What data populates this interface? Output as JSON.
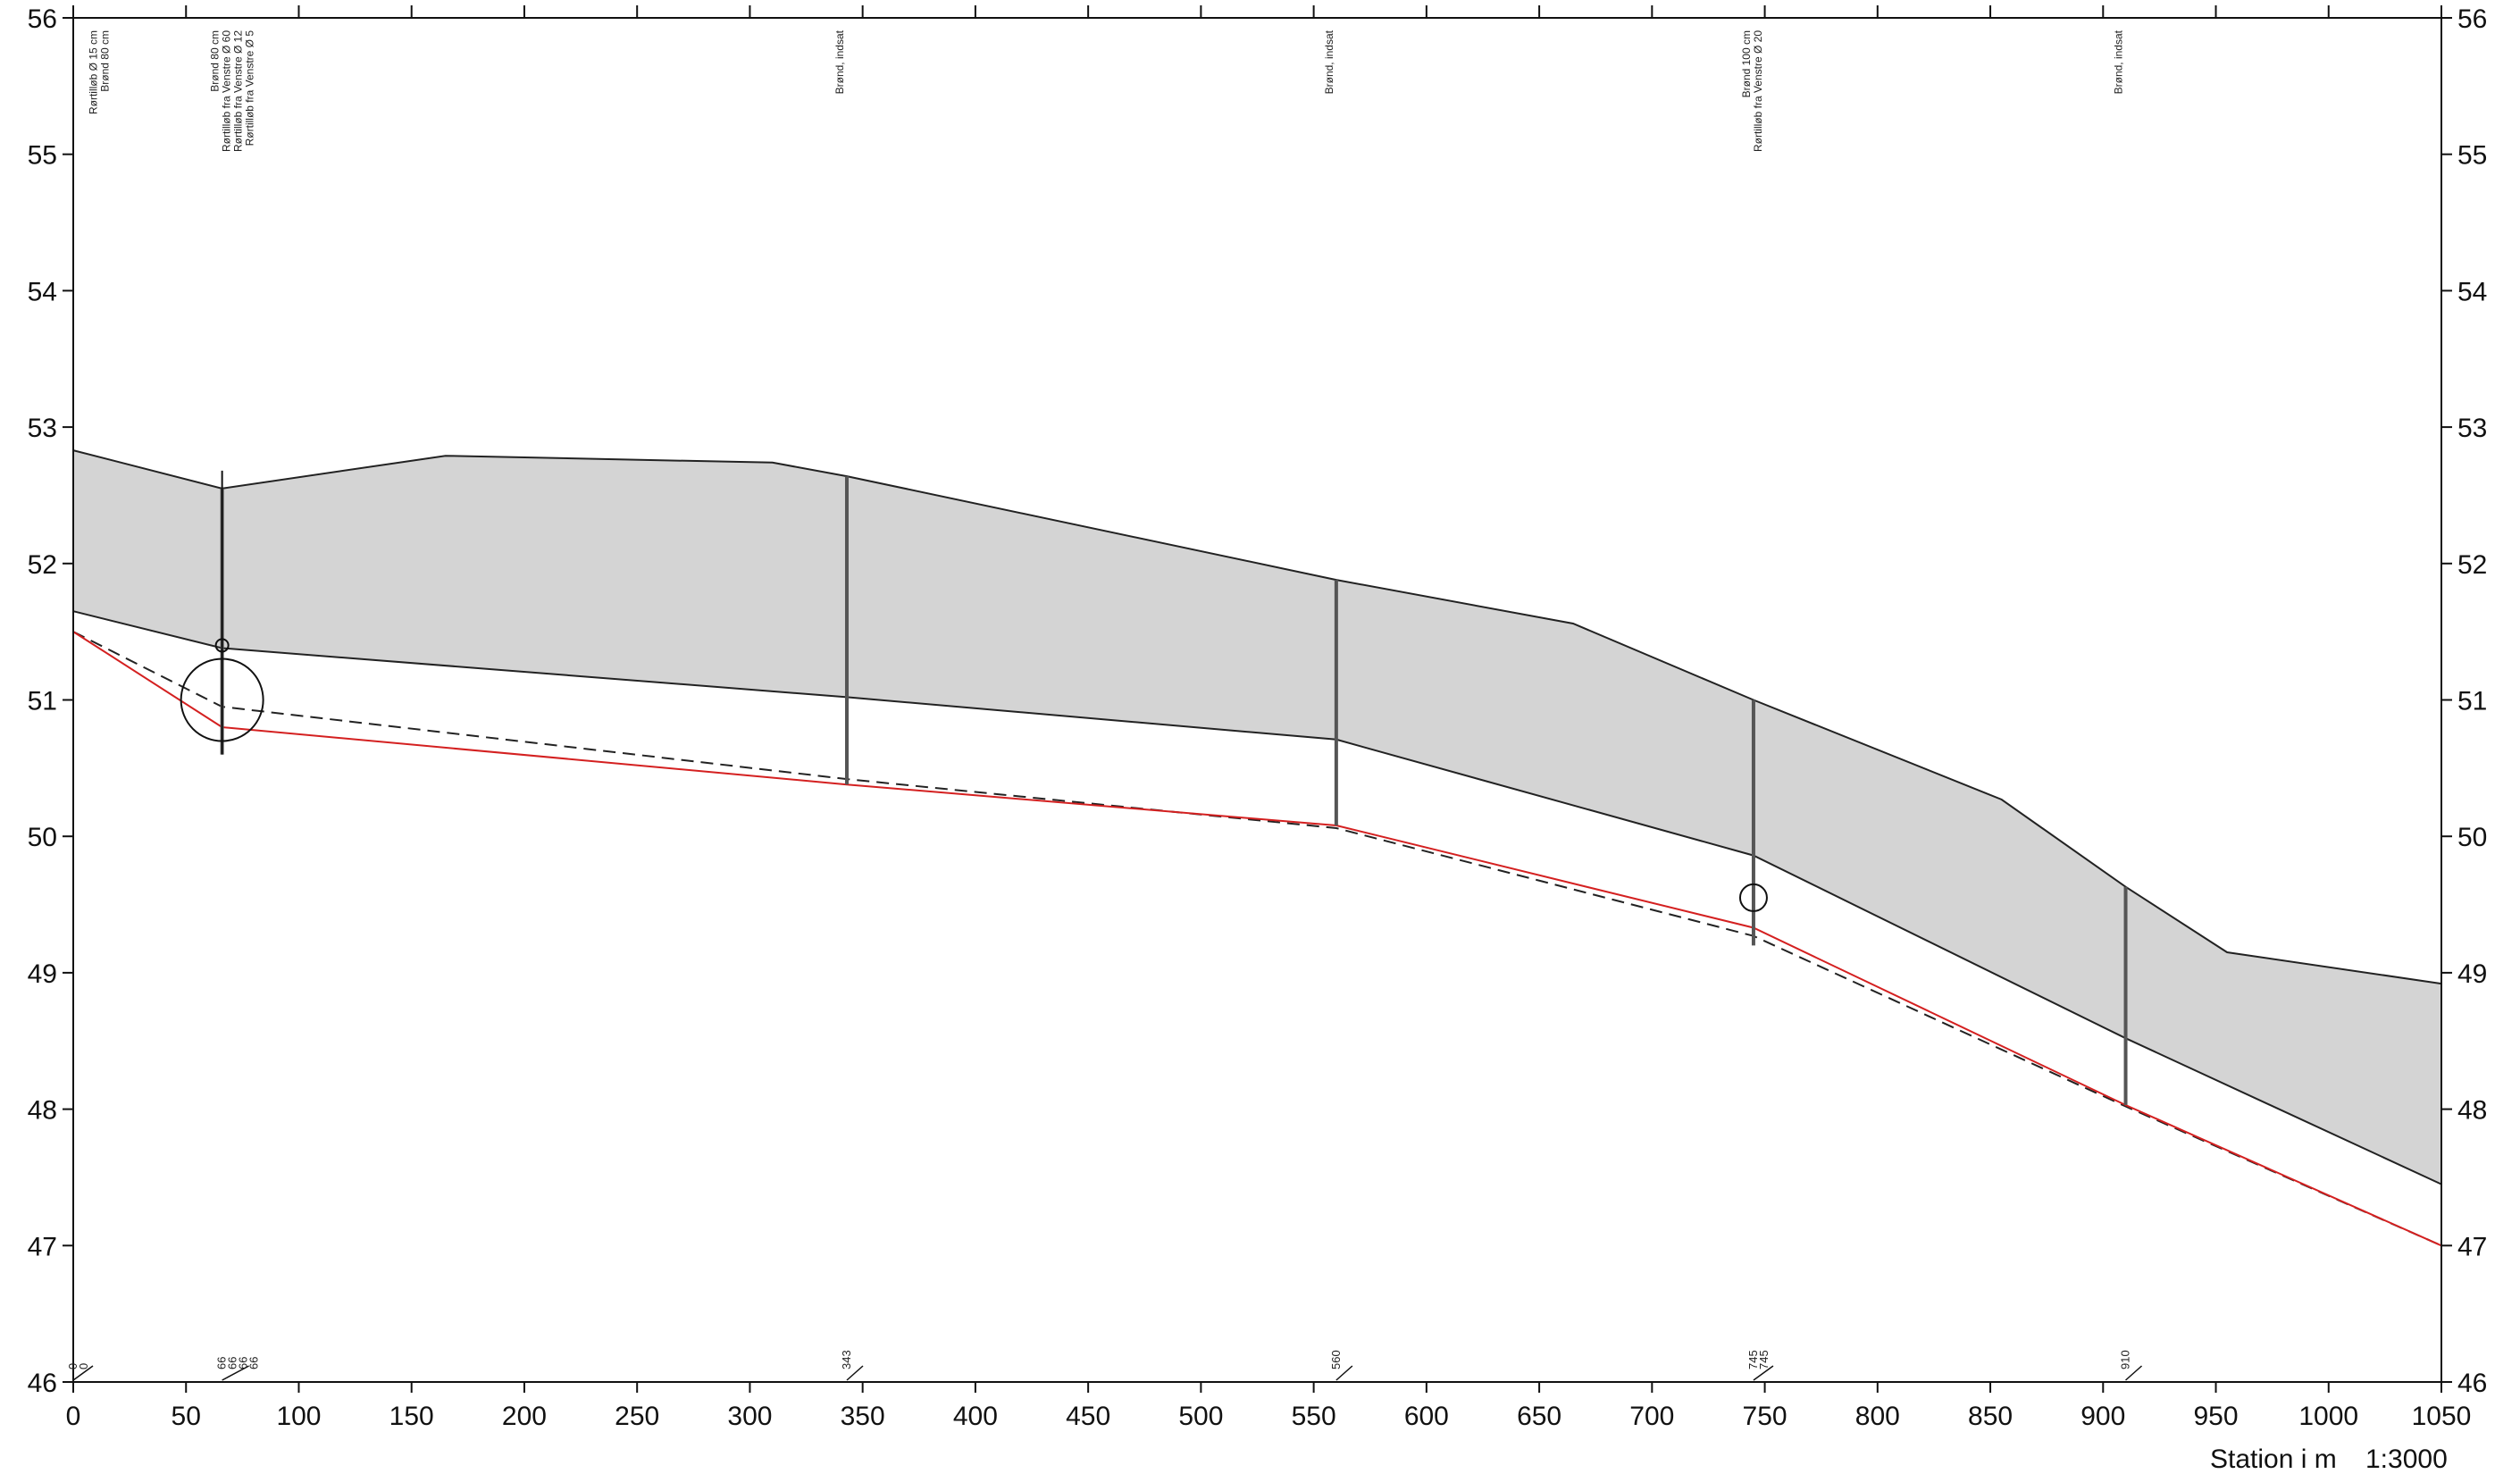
{
  "chart_data": {
    "type": "line",
    "xlabel": "Station i m",
    "scale": "1:3000",
    "xlim": [
      0,
      1050
    ],
    "ylim": [
      46,
      56
    ],
    "x_ticks": [
      "0",
      "50",
      "100",
      "150",
      "200",
      "250",
      "300",
      "350",
      "400",
      "450",
      "500",
      "550",
      "600",
      "650",
      "700",
      "750",
      "800",
      "850",
      "900",
      "950",
      "1000",
      "1050"
    ],
    "y_ticks": [
      "46",
      "47",
      "48",
      "49",
      "50",
      "51",
      "52",
      "53",
      "54",
      "55",
      "56"
    ],
    "series": [
      {
        "role": "terrain",
        "points": [
          [
            0,
            52.83
          ],
          [
            66,
            52.55
          ],
          [
            165,
            52.79
          ],
          [
            310,
            52.74
          ],
          [
            343,
            52.64
          ],
          [
            560,
            51.88
          ],
          [
            665,
            51.56
          ],
          [
            745,
            51.0
          ],
          [
            855,
            50.27
          ],
          [
            910,
            49.63
          ],
          [
            955,
            49.15
          ],
          [
            1050,
            48.92
          ]
        ]
      },
      {
        "role": "cover-bottom",
        "points": [
          [
            0,
            51.65
          ],
          [
            66,
            51.38
          ],
          [
            343,
            51.02
          ],
          [
            560,
            50.71
          ],
          [
            745,
            49.86
          ],
          [
            910,
            48.52
          ],
          [
            1050,
            47.45
          ]
        ]
      },
      {
        "role": "pipe-bottom-red",
        "points": [
          [
            0,
            51.5
          ],
          [
            66,
            50.8
          ],
          [
            343,
            50.38
          ],
          [
            560,
            50.08
          ],
          [
            745,
            49.33
          ],
          [
            910,
            48.03
          ],
          [
            1050,
            47.0
          ]
        ]
      },
      {
        "role": "pipe-dashed",
        "points": [
          [
            0,
            51.5
          ],
          [
            66,
            50.95
          ],
          [
            343,
            50.42
          ],
          [
            560,
            50.06
          ],
          [
            745,
            49.27
          ],
          [
            910,
            48.02
          ],
          [
            1050,
            47.0
          ]
        ]
      }
    ],
    "manholes": [
      {
        "station": 66,
        "station_label": "66",
        "top": 52.55,
        "bottom": 50.6,
        "notes": [
          "Brønd 80 cm",
          "Rørtilløb fra Venstre Ø 60",
          "Rørtilløb fra Venstre Ø 12",
          "Rørtilløb fra Venstre Ø 5"
        ]
      },
      {
        "station": 343,
        "station_label": "343",
        "top": 52.64,
        "bottom": 50.38,
        "notes": [
          "Brønd, indsat"
        ]
      },
      {
        "station": 560,
        "station_label": "560",
        "top": 51.88,
        "bottom": 50.08,
        "notes": [
          "Brønd, indsat"
        ]
      },
      {
        "station": 745,
        "station_label": "745",
        "top": 51.0,
        "bottom": 49.2,
        "notes": [
          "Brønd 100 cm",
          "Rørtilløb fra Venstre Ø 20"
        ]
      },
      {
        "station": 910,
        "station_label": "910",
        "top": 49.63,
        "bottom": 48.03,
        "notes": [
          "Brønd, indsat"
        ]
      }
    ],
    "start_notes": [
      "Rørtilløb Ø 15 cm",
      "Brønd 80 cm"
    ],
    "bottom_station_labels": [
      {
        "station": 0,
        "labels": [
          "0",
          "0"
        ]
      },
      {
        "station": 66,
        "labels": [
          "66",
          "66",
          "66",
          "66"
        ]
      },
      {
        "station": 343,
        "labels": [
          "343"
        ]
      },
      {
        "station": 560,
        "labels": [
          "560"
        ]
      },
      {
        "station": 745,
        "labels": [
          "745",
          "745"
        ]
      },
      {
        "station": 910,
        "labels": [
          "910"
        ]
      }
    ],
    "circles": [
      {
        "station": 66,
        "level": 51.0,
        "size": "large"
      },
      {
        "station": 745,
        "level": 49.55,
        "size": "small"
      }
    ],
    "colors": {
      "fill": "#d4d4d4",
      "line": "#222222",
      "red": "#d42020"
    },
    "grid": false
  }
}
